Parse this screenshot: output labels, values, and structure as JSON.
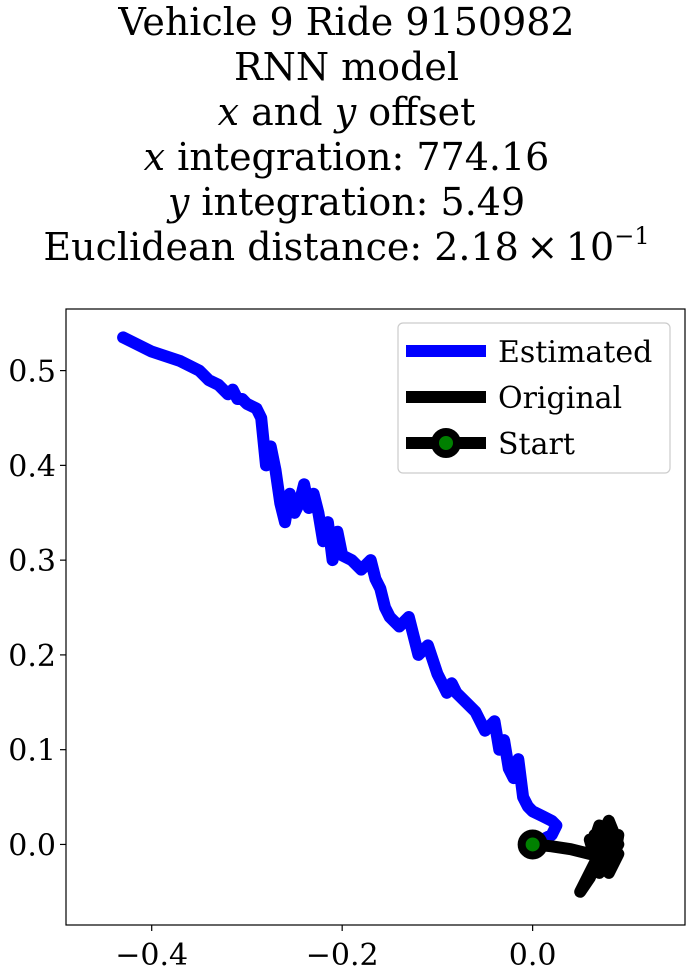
{
  "title_lines": {
    "l1": "Vehicle 9 Ride 9150982",
    "l2": "RNN model",
    "l3a": "x",
    "l3b": " and ",
    "l3c": "y",
    "l3d": " offset",
    "l4a": "x",
    "l4b": " integration: 774.16",
    "l5a": "y",
    "l5b": " integration: 5.49",
    "l6a": "Euclidean distance: 2.18 × 10",
    "l6sup": "−1"
  },
  "chart_data": {
    "type": "line",
    "xlim": [
      -0.49,
      0.16
    ],
    "ylim": [
      -0.085,
      0.565
    ],
    "xticks": [
      -0.4,
      -0.2,
      0.0
    ],
    "xtick_labels": [
      "−0.4",
      "−0.2",
      "0.0"
    ],
    "yticks": [
      0.0,
      0.1,
      0.2,
      0.3,
      0.4,
      0.5
    ],
    "ytick_labels": [
      "0.0",
      "0.1",
      "0.2",
      "0.3",
      "0.4",
      "0.5"
    ],
    "legend_position": "top-right",
    "series": [
      {
        "name": "Estimated",
        "color": "#0000ff",
        "x": [
          -0.43,
          -0.4,
          -0.37,
          -0.36,
          -0.35,
          -0.34,
          -0.33,
          -0.32,
          -0.315,
          -0.31,
          -0.305,
          -0.3,
          -0.29,
          -0.285,
          -0.28,
          -0.275,
          -0.27,
          -0.265,
          -0.26,
          -0.255,
          -0.25,
          -0.245,
          -0.24,
          -0.235,
          -0.23,
          -0.225,
          -0.22,
          -0.215,
          -0.21,
          -0.205,
          -0.2,
          -0.19,
          -0.18,
          -0.17,
          -0.165,
          -0.16,
          -0.155,
          -0.15,
          -0.14,
          -0.13,
          -0.12,
          -0.11,
          -0.1,
          -0.095,
          -0.09,
          -0.085,
          -0.08,
          -0.07,
          -0.06,
          -0.05,
          -0.04,
          -0.035,
          -0.03,
          -0.025,
          -0.02,
          -0.015,
          -0.01,
          -0.005,
          0.0,
          0.01,
          0.02,
          0.025,
          0.02,
          0.01,
          0.0
        ],
        "y": [
          0.535,
          0.52,
          0.51,
          0.505,
          0.5,
          0.49,
          0.485,
          0.475,
          0.48,
          0.47,
          0.47,
          0.465,
          0.46,
          0.45,
          0.4,
          0.42,
          0.395,
          0.36,
          0.34,
          0.37,
          0.35,
          0.36,
          0.38,
          0.355,
          0.37,
          0.35,
          0.32,
          0.34,
          0.3,
          0.33,
          0.305,
          0.3,
          0.29,
          0.3,
          0.28,
          0.27,
          0.25,
          0.24,
          0.23,
          0.24,
          0.2,
          0.21,
          0.18,
          0.17,
          0.16,
          0.17,
          0.16,
          0.15,
          0.14,
          0.12,
          0.13,
          0.1,
          0.11,
          0.08,
          0.07,
          0.09,
          0.05,
          0.04,
          0.035,
          0.03,
          0.025,
          0.02,
          0.01,
          0.005,
          0.0
        ]
      },
      {
        "name": "Original",
        "color": "#000000",
        "x": [
          0.0,
          0.02,
          0.04,
          0.06,
          0.07,
          0.08,
          0.09,
          0.085,
          0.075,
          0.065,
          0.08,
          0.09,
          0.07,
          0.06,
          0.075,
          0.085,
          0.07,
          0.06,
          0.05,
          0.065,
          0.08,
          0.07,
          0.09,
          0.08,
          0.065,
          0.075,
          0.085,
          0.07
        ],
        "y": [
          0.0,
          -0.002,
          -0.005,
          -0.01,
          0.02,
          -0.015,
          0.01,
          -0.02,
          0.015,
          -0.005,
          0.025,
          0.0,
          -0.03,
          0.005,
          -0.025,
          0.01,
          -0.01,
          -0.035,
          -0.05,
          -0.02,
          0.0,
          0.015,
          -0.01,
          -0.03,
          0.01,
          -0.015,
          0.005,
          -0.005
        ]
      }
    ],
    "start_point": {
      "name": "Start",
      "x": 0.0,
      "y": 0.0,
      "marker_color": "#008000",
      "edge_color": "#000000"
    }
  }
}
